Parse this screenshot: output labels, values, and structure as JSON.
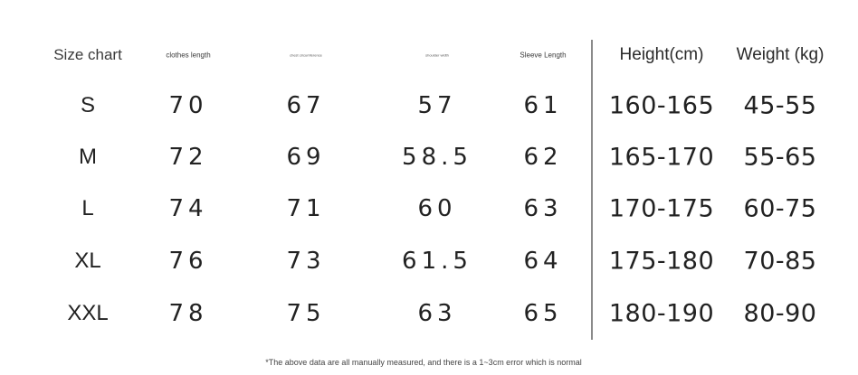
{
  "table": {
    "headers": [
      "Size chart",
      "clothes length",
      "chest circumference",
      "shoulder width",
      "Sleeve Length",
      "Height(cm)",
      "Weight (kg)"
    ],
    "rows": [
      [
        "S",
        "70",
        "67",
        "57",
        "61",
        "160-165",
        "45-55"
      ],
      [
        "M",
        "72",
        "69",
        "58.5",
        "62",
        "165-170",
        "55-65"
      ],
      [
        "L",
        "74",
        "71",
        "60",
        "63",
        "170-175",
        "60-75"
      ],
      [
        "XL",
        "76",
        "73",
        "61.5",
        "64",
        "175-180",
        "70-85"
      ],
      [
        "XXL",
        "78",
        "75",
        "63",
        "65",
        "180-190",
        "80-90"
      ]
    ]
  },
  "note": "*The above data are all manually measured, and there is a 1~3cm error which is normal"
}
